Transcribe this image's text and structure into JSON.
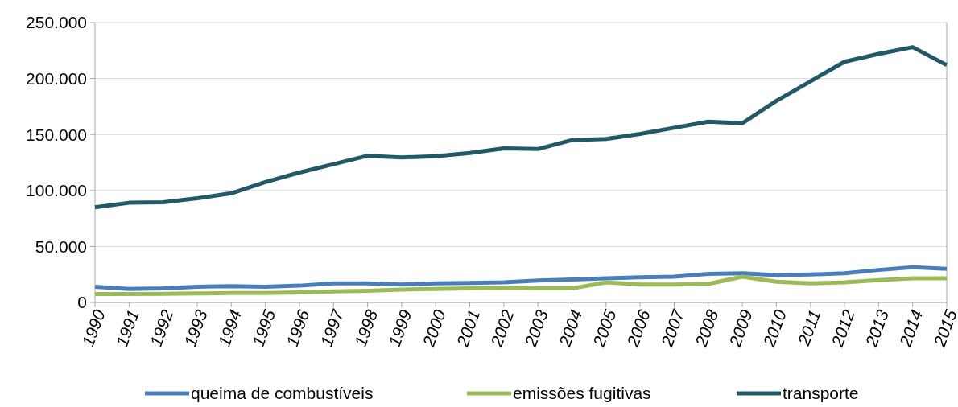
{
  "chart_data": {
    "type": "line",
    "categories": [
      "1990",
      "1991",
      "1992",
      "1993",
      "1994",
      "1995",
      "1996",
      "1997",
      "1998",
      "1999",
      "2000",
      "2001",
      "2002",
      "2003",
      "2004",
      "2005",
      "2006",
      "2007",
      "2008",
      "2009",
      "2010",
      "2011",
      "2012",
      "2013",
      "2014",
      "2015"
    ],
    "series": [
      {
        "name": "queima de combustíveis",
        "color": "#4a7ebb",
        "values": [
          14000,
          12000,
          12500,
          14000,
          14500,
          14000,
          15000,
          17000,
          17000,
          16000,
          17000,
          17500,
          18000,
          19500,
          20500,
          21500,
          22500,
          23000,
          25500,
          26000,
          24500,
          25000,
          26000,
          29000,
          31500,
          30000
        ]
      },
      {
        "name": "emissões fugitivas",
        "color": "#9bbb59",
        "values": [
          7500,
          7500,
          7800,
          8000,
          8500,
          8500,
          9000,
          9800,
          10500,
          11500,
          12000,
          12500,
          13000,
          12500,
          12500,
          18000,
          16000,
          16000,
          16500,
          23000,
          18500,
          17000,
          18000,
          20000,
          21500,
          21500
        ]
      },
      {
        "name": "transporte",
        "color": "#215968",
        "values": [
          85000,
          89000,
          89500,
          93000,
          97500,
          107500,
          116000,
          123500,
          131000,
          129500,
          130500,
          133500,
          137500,
          137000,
          145000,
          146000,
          150500,
          156000,
          161500,
          160000,
          180000,
          197500,
          215000,
          222000,
          228000,
          212000
        ]
      }
    ],
    "ylim": [
      0,
      250000
    ],
    "yticks": [
      {
        "value": 0,
        "label": "0"
      },
      {
        "value": 50000,
        "label": "50.000"
      },
      {
        "value": 100000,
        "label": "100.000"
      },
      {
        "value": 150000,
        "label": "150.000"
      },
      {
        "value": 200000,
        "label": "200.000"
      },
      {
        "value": 250000,
        "label": "250.000"
      }
    ],
    "grid": "y",
    "legend": "bottom",
    "marker": "none",
    "line_style": "solid"
  }
}
